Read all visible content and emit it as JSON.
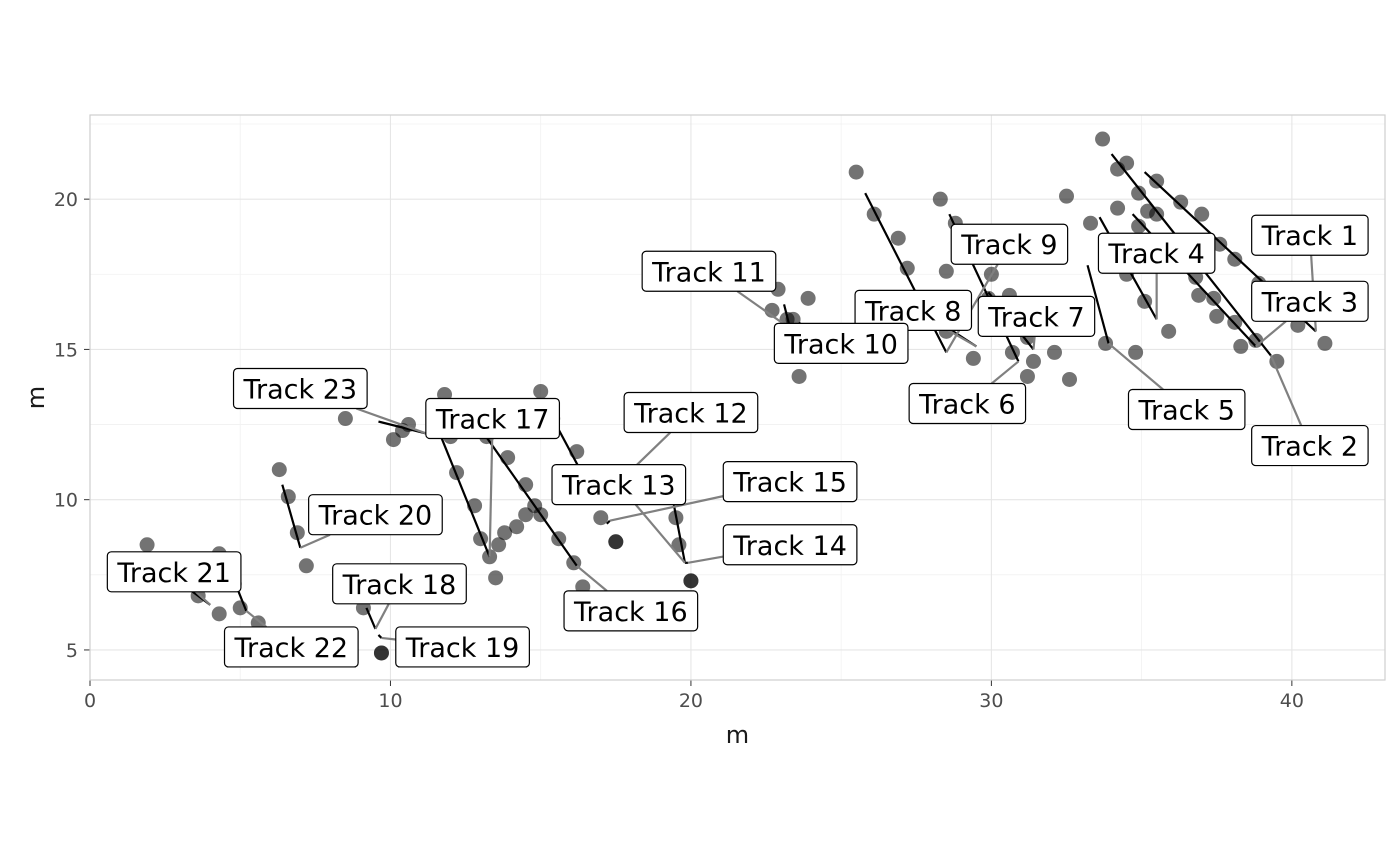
{
  "chart_data": {
    "type": "scatter",
    "title": "",
    "xlabel": "m",
    "ylabel": "m",
    "xlim": [
      0,
      43.1
    ],
    "ylim": [
      4,
      22.8
    ],
    "x_ticks": [
      0,
      10,
      20,
      30,
      40
    ],
    "y_ticks": [
      5,
      10,
      15,
      20
    ],
    "grid": true,
    "legend": "none",
    "tracks": [
      {
        "name": "Track 1",
        "points": [
          [
            35.5,
            20.6
          ],
          [
            36.3,
            19.9
          ],
          [
            37.0,
            19.5
          ],
          [
            37.6,
            18.5
          ],
          [
            38.1,
            18.0
          ],
          [
            38.9,
            17.2
          ],
          [
            39.6,
            16.7
          ],
          [
            40.2,
            15.8
          ]
        ],
        "line": [
          [
            35.1,
            20.9
          ],
          [
            40.8,
            15.6
          ]
        ],
        "label_at": [
          40.6,
          18.8
        ]
      },
      {
        "name": "Track 2",
        "points": [
          [
            33.7,
            22.0
          ],
          [
            34.2,
            21.0
          ],
          [
            34.9,
            20.2
          ],
          [
            35.5,
            19.5
          ],
          [
            36.1,
            18.2
          ],
          [
            36.8,
            17.4
          ],
          [
            37.4,
            16.7
          ],
          [
            38.1,
            15.9
          ],
          [
            38.8,
            15.3
          ],
          [
            39.5,
            14.6
          ]
        ],
        "line": [
          [
            34.0,
            21.5
          ],
          [
            39.3,
            14.8
          ]
        ],
        "label_at": [
          40.6,
          11.8
        ]
      },
      {
        "name": "Track 3",
        "points": [
          [
            34.5,
            21.2
          ],
          [
            35.2,
            19.6
          ],
          [
            35.9,
            18.6
          ],
          [
            36.9,
            16.8
          ],
          [
            37.5,
            16.1
          ],
          [
            38.3,
            15.1
          ],
          [
            41.1,
            15.2
          ]
        ],
        "line": [
          [
            34.7,
            19.5
          ],
          [
            38.8,
            15.1
          ]
        ],
        "label_at": [
          40.6,
          16.6
        ]
      },
      {
        "name": "Track 4",
        "points": [
          [
            34.2,
            19.7
          ],
          [
            34.9,
            19.1
          ],
          [
            34.5,
            17.5
          ],
          [
            35.1,
            16.6
          ],
          [
            35.9,
            15.6
          ]
        ],
        "line": [
          [
            33.6,
            19.4
          ],
          [
            35.5,
            16.0
          ]
        ],
        "label_at": [
          35.5,
          18.2
        ]
      },
      {
        "name": "Track 5",
        "points": [
          [
            32.5,
            20.1
          ],
          [
            33.3,
            19.2
          ],
          [
            33.8,
            15.2
          ],
          [
            34.8,
            14.9
          ],
          [
            32.6,
            14.0
          ]
        ],
        "line": [
          [
            33.2,
            17.8
          ],
          [
            33.9,
            15.2
          ]
        ],
        "label_at": [
          36.5,
          13.0
        ]
      },
      {
        "name": "Track 6",
        "points": [
          [
            28.3,
            20.0
          ],
          [
            28.8,
            19.2
          ],
          [
            29.2,
            18.1
          ],
          [
            29.9,
            16.7
          ],
          [
            30.4,
            15.9
          ],
          [
            30.7,
            14.9
          ],
          [
            31.2,
            14.1
          ],
          [
            31.4,
            14.6
          ]
        ],
        "line": [
          [
            28.6,
            19.5
          ],
          [
            30.9,
            14.6
          ]
        ],
        "label_at": [
          29.2,
          13.2
        ]
      },
      {
        "name": "Track 7",
        "points": [
          [
            30.0,
            17.5
          ],
          [
            30.6,
            16.8
          ],
          [
            31.2,
            15.4
          ],
          [
            31.7,
            16.0
          ],
          [
            32.1,
            14.9
          ],
          [
            32.7,
            15.7
          ]
        ],
        "line": [
          [
            29.9,
            16.9
          ],
          [
            31.4,
            15.0
          ]
        ],
        "label_at": [
          31.5,
          16.1
        ]
      },
      {
        "name": "Track 8",
        "points": [
          [
            28.5,
            17.6
          ],
          [
            28.1,
            16.7
          ],
          [
            29.8,
            15.7
          ],
          [
            28.5,
            15.6
          ],
          [
            29.4,
            14.7
          ]
        ],
        "line": [
          [
            27.8,
            16.2
          ],
          [
            29.5,
            15.1
          ]
        ],
        "label_at": [
          27.4,
          16.3
        ]
      },
      {
        "name": "Track 9",
        "points": [
          [
            25.5,
            20.9
          ],
          [
            26.1,
            19.5
          ],
          [
            26.9,
            18.7
          ],
          [
            27.2,
            17.7
          ]
        ],
        "line": [
          [
            25.8,
            20.2
          ],
          [
            28.5,
            14.9
          ]
        ],
        "label_at": [
          30.6,
          18.5
        ]
      },
      {
        "name": "Track 10",
        "points": [
          [
            22.9,
            17.0
          ],
          [
            23.4,
            16.0
          ],
          [
            23.9,
            16.7
          ],
          [
            24.0,
            14.8
          ],
          [
            24.5,
            15.6
          ],
          [
            25.0,
            14.8
          ]
        ],
        "line": [
          [
            23.6,
            15.9
          ],
          [
            24.2,
            14.9
          ]
        ],
        "label_at": [
          25.0,
          15.2
        ]
      },
      {
        "name": "Track 11",
        "points": [
          [
            22.7,
            16.3
          ],
          [
            23.2,
            16.0
          ],
          [
            23.6,
            14.1
          ]
        ],
        "line": [
          [
            23.1,
            16.5
          ],
          [
            23.3,
            15.7
          ]
        ],
        "label_at": [
          20.6,
          17.6
        ]
      },
      {
        "name": "Track 12",
        "points": [
          [
            15.0,
            13.6
          ],
          [
            15.4,
            12.7
          ],
          [
            16.2,
            11.6
          ],
          [
            16.7,
            10.5
          ],
          [
            17.0,
            9.4
          ],
          [
            17.5,
            8.6
          ]
        ],
        "line": [
          [
            15.4,
            12.7
          ],
          [
            16.9,
            9.9
          ]
        ],
        "label_at": [
          20.0,
          12.9
        ]
      },
      {
        "name": "Track 13",
        "points": [
          [
            19.3,
            10.3
          ],
          [
            19.5,
            9.4
          ],
          [
            19.6,
            8.5
          ],
          [
            20.0,
            7.3
          ]
        ],
        "line": [
          [
            19.4,
            10.0
          ],
          [
            19.8,
            7.9
          ]
        ],
        "label_at": [
          17.6,
          10.5
        ]
      },
      {
        "name": "Track 14",
        "points": [
          [
            20.0,
            7.3
          ]
        ],
        "line": [
          [
            19.8,
            7.9
          ],
          [
            19.9,
            7.9
          ]
        ],
        "label_at": [
          23.3,
          8.5
        ]
      },
      {
        "name": "Track 15",
        "points": [
          [
            17.5,
            8.6
          ]
        ],
        "line": [
          [
            17.2,
            9.2
          ],
          [
            17.3,
            9.3
          ]
        ],
        "label_at": [
          23.3,
          10.6
        ]
      },
      {
        "name": "Track 16",
        "points": [
          [
            11.8,
            13.5
          ],
          [
            12.6,
            13.0
          ],
          [
            13.2,
            12.1
          ],
          [
            13.9,
            11.4
          ],
          [
            14.5,
            10.5
          ],
          [
            15.0,
            9.5
          ],
          [
            15.6,
            8.7
          ],
          [
            16.1,
            7.9
          ],
          [
            16.4,
            7.1
          ]
        ],
        "line": [
          [
            12.9,
            12.5
          ],
          [
            16.2,
            7.8
          ]
        ],
        "label_at": [
          18.0,
          6.3
        ]
      },
      {
        "name": "Track 17",
        "points": [
          [
            12.0,
            12.1
          ],
          [
            12.2,
            10.9
          ],
          [
            12.8,
            9.8
          ],
          [
            13.0,
            8.7
          ],
          [
            13.3,
            8.1
          ],
          [
            13.5,
            7.4
          ],
          [
            13.6,
            8.5
          ],
          [
            13.8,
            8.9
          ],
          [
            14.2,
            9.1
          ],
          [
            14.5,
            9.5
          ],
          [
            14.8,
            9.8
          ]
        ],
        "line": [
          [
            11.6,
            12.3
          ],
          [
            13.3,
            8.1
          ]
        ],
        "label_at": [
          13.4,
          12.7
        ]
      },
      {
        "name": "Track 18",
        "points": [
          [
            8.7,
            7.6
          ],
          [
            9.1,
            6.4
          ],
          [
            9.7,
            4.9
          ]
        ],
        "line": [
          [
            9.2,
            6.4
          ],
          [
            9.5,
            5.7
          ]
        ],
        "label_at": [
          10.3,
          7.2
        ]
      },
      {
        "name": "Track 19",
        "points": [
          [
            9.7,
            4.9
          ]
        ],
        "line": [
          [
            9.6,
            5.5
          ],
          [
            9.7,
            5.4
          ]
        ],
        "label_at": [
          12.4,
          5.1
        ]
      },
      {
        "name": "Track 20",
        "points": [
          [
            6.3,
            11.0
          ],
          [
            6.6,
            10.1
          ],
          [
            6.9,
            8.9
          ],
          [
            7.2,
            7.8
          ]
        ],
        "line": [
          [
            6.4,
            10.5
          ],
          [
            7.0,
            8.4
          ]
        ],
        "label_at": [
          9.5,
          9.5
        ]
      },
      {
        "name": "Track 21",
        "points": [
          [
            1.9,
            8.5
          ],
          [
            3.6,
            6.8
          ],
          [
            4.3,
            6.2
          ],
          [
            4.8,
            7.2
          ]
        ],
        "line": [
          [
            3.2,
            7.1
          ],
          [
            4.0,
            6.5
          ]
        ],
        "label_at": [
          2.8,
          7.6
        ]
      },
      {
        "name": "Track 22",
        "points": [
          [
            4.3,
            8.2
          ],
          [
            5.0,
            6.4
          ],
          [
            5.6,
            5.9
          ]
        ],
        "line": [
          [
            4.8,
            7.3
          ],
          [
            5.2,
            6.3
          ]
        ],
        "label_at": [
          6.7,
          5.1
        ]
      },
      {
        "name": "Track 23",
        "points": [
          [
            8.5,
            12.7
          ],
          [
            10.1,
            12.0
          ],
          [
            10.4,
            12.3
          ],
          [
            10.6,
            12.5
          ]
        ],
        "line": [
          [
            9.6,
            12.6
          ],
          [
            11.2,
            12.2
          ]
        ],
        "label_at": [
          7.0,
          13.7
        ]
      }
    ]
  }
}
